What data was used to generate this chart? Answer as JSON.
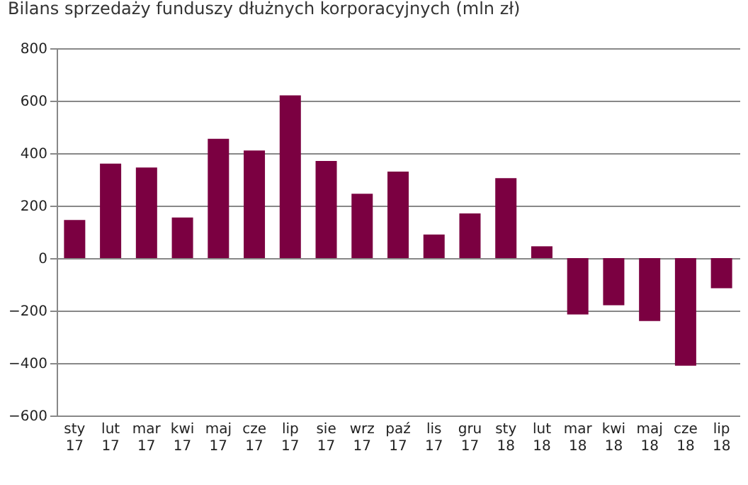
{
  "chart_data": {
    "type": "bar",
    "title": "Bilans sprzedaży funduszy dłużnych korporacyjnych (mln zł)",
    "categories": [
      "sty 17",
      "lut 17",
      "mar 17",
      "kwi 17",
      "maj 17",
      "cze 17",
      "lip 17",
      "sie 17",
      "wrz 17",
      "paź 17",
      "lis 17",
      "gru 17",
      "sty 18",
      "lut 18",
      "mar 18",
      "kwi 18",
      "maj 18",
      "cze 18",
      "lip 18"
    ],
    "values": [
      145,
      360,
      345,
      155,
      455,
      410,
      620,
      370,
      245,
      330,
      90,
      170,
      305,
      45,
      -215,
      -180,
      -240,
      -410,
      -115
    ],
    "color": "#7b0041",
    "ylim": [
      -600,
      800
    ],
    "yticks": [
      -600,
      -400,
      -200,
      0,
      200,
      400,
      600,
      800
    ],
    "grid": "y"
  }
}
